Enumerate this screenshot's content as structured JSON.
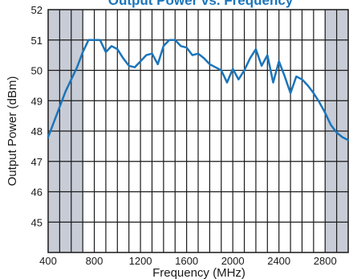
{
  "chart_data": {
    "type": "line",
    "title": "Output Power vs. Frequency",
    "xlabel": "Frequency (MHz)",
    "ylabel": "Output Power (dBm)",
    "xlim": [
      400,
      3000
    ],
    "ylim": [
      44,
      52
    ],
    "x_ticks": [
      400,
      800,
      1200,
      1600,
      2000,
      2400,
      2800
    ],
    "y_ticks": [
      45,
      46,
      47,
      48,
      49,
      50,
      51,
      52
    ],
    "grid": true,
    "legend": "none",
    "shaded_regions": [
      [
        400,
        700
      ],
      [
        2800,
        3000
      ]
    ],
    "colors": {
      "line": "#1b75bb",
      "shade": "#c8ccd6",
      "grid": "#1a1a1a",
      "title": "#1b75bb"
    },
    "series": [
      {
        "x": [
          400,
          450,
          500,
          550,
          600,
          650,
          700,
          750,
          800,
          850,
          900,
          950,
          1000,
          1050,
          1100,
          1150,
          1200,
          1250,
          1300,
          1350,
          1400,
          1450,
          1500,
          1550,
          1600,
          1650,
          1700,
          1750,
          1800,
          1850,
          1900,
          1950,
          2000,
          2050,
          2100,
          2150,
          2200,
          2250,
          2300,
          2350,
          2400,
          2450,
          2500,
          2550,
          2600,
          2650,
          2700,
          2750,
          2800,
          2850,
          2900,
          2950,
          3000
        ],
        "y": [
          47.8,
          48.3,
          48.8,
          49.3,
          49.7,
          50.1,
          50.6,
          51.0,
          51.0,
          51.0,
          50.6,
          50.8,
          50.7,
          50.4,
          50.15,
          50.1,
          50.3,
          50.5,
          50.55,
          50.2,
          50.8,
          51.0,
          51.0,
          50.8,
          50.75,
          50.5,
          50.55,
          50.4,
          50.2,
          50.1,
          50.0,
          49.6,
          50.05,
          49.7,
          50.0,
          50.4,
          50.7,
          50.15,
          50.5,
          49.6,
          50.3,
          49.8,
          49.25,
          49.8,
          49.7,
          49.5,
          49.25,
          48.95,
          48.6,
          48.2,
          47.95,
          47.8,
          47.7
        ]
      }
    ]
  }
}
